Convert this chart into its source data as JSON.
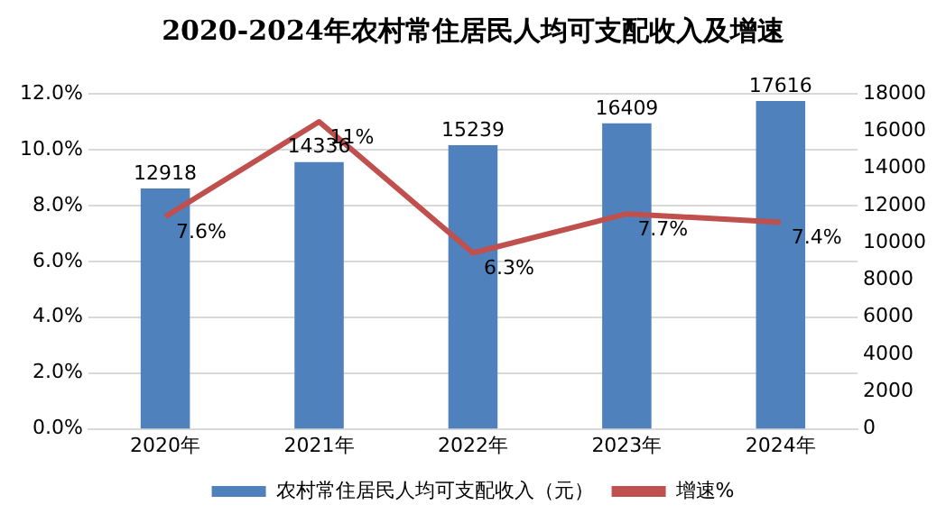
{
  "chart_data": {
    "type": "bar",
    "title": "2020-2024年农村常住居民人均可支配收入及增速",
    "categories": [
      "2020年",
      "2021年",
      "2022年",
      "2023年",
      "2024年"
    ],
    "series": [
      {
        "name": "农村常住居民人均可支配收入（元）",
        "type": "bar",
        "axis": "y2",
        "color": "#4f81bd",
        "values": [
          12918,
          14336,
          15239,
          16409,
          17616
        ],
        "value_labels": [
          "12918",
          "14336",
          "15239",
          "16409",
          "17616"
        ]
      },
      {
        "name": "增速%",
        "type": "line",
        "axis": "y",
        "color": "#c0504d",
        "values": [
          7.6,
          11,
          6.3,
          7.7,
          7.4
        ],
        "value_labels": [
          "7.6%",
          "11%",
          "6.3%",
          "7.7%",
          "7.4%"
        ]
      }
    ],
    "ylim": [
      0,
      12
    ],
    "yticks": [
      {
        "value": 0,
        "label": "0.0%"
      },
      {
        "value": 2,
        "label": "2.0%"
      },
      {
        "value": 4,
        "label": "4.0%"
      },
      {
        "value": 6,
        "label": "6.0%"
      },
      {
        "value": 8,
        "label": "8.0%"
      },
      {
        "value": 10,
        "label": "10.0%"
      },
      {
        "value": 12,
        "label": "12.0%"
      }
    ],
    "y2lim": [
      0,
      18000
    ],
    "y2ticks": [
      0,
      2000,
      4000,
      6000,
      8000,
      10000,
      12000,
      14000,
      16000,
      18000
    ],
    "grid": "y",
    "legend": "bottom",
    "marker": "none",
    "line_style": "solid"
  }
}
